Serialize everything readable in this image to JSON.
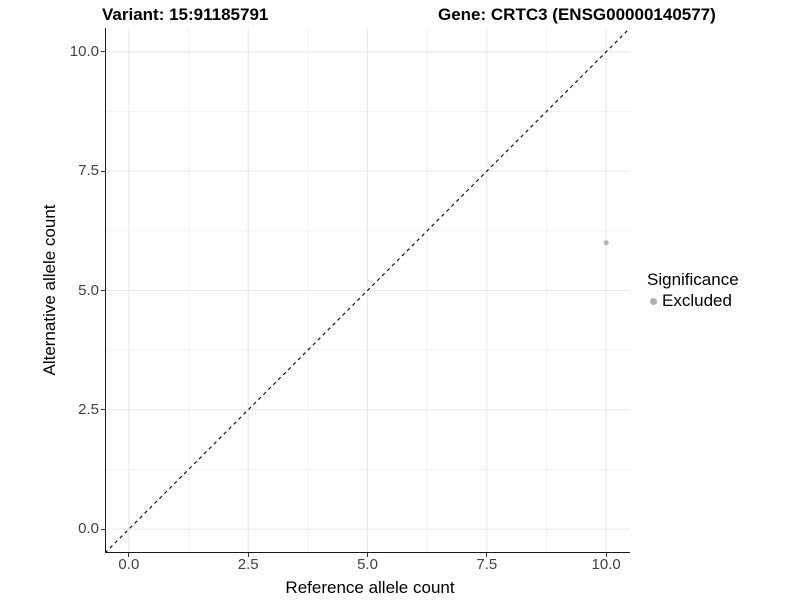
{
  "chart_data": {
    "type": "scatter",
    "titles": {
      "variant": "Variant: 15:91185791",
      "gene": "Gene: CRTC3 (ENSG00000140577)"
    },
    "xlabel": "Reference allele count",
    "ylabel": "Alternative allele count",
    "xlim": [
      -0.5,
      10.5
    ],
    "ylim": [
      -0.5,
      10.5
    ],
    "x_ticks": {
      "values": [
        0,
        2.5,
        5,
        7.5,
        10
      ],
      "labels": [
        "0.0",
        "2.5",
        "5.0",
        "7.5",
        "10.0"
      ]
    },
    "y_ticks": {
      "values": [
        0,
        2.5,
        5,
        7.5,
        10
      ],
      "labels": [
        "0.0",
        "2.5",
        "5.0",
        "7.5",
        "10.0"
      ]
    },
    "x_minor_gridlines": [
      1.25,
      3.75,
      6.25,
      8.75
    ],
    "y_minor_gridlines": [
      1.25,
      3.75,
      6.25,
      8.75
    ],
    "grid": "major+minor",
    "identity_line": {
      "slope": 1,
      "intercept": 0,
      "style": "dashed",
      "color": "#000000"
    },
    "series": [
      {
        "name": "Excluded",
        "color": "#b0b0b0",
        "points": [
          {
            "x": 10,
            "y": 6
          }
        ]
      }
    ],
    "legend": {
      "title": "Significance",
      "position": "right",
      "entries": [
        {
          "label": "Excluded",
          "color": "#b0b0b0"
        }
      ]
    },
    "colors": {
      "background": "#ffffff",
      "grid_major": "#e7e7e7",
      "grid_minor": "#f2f2f2",
      "axis_line": "#1a1a1a",
      "tick_mark": "#333333",
      "tick_label": "#404040",
      "title_text": "#000000"
    }
  }
}
